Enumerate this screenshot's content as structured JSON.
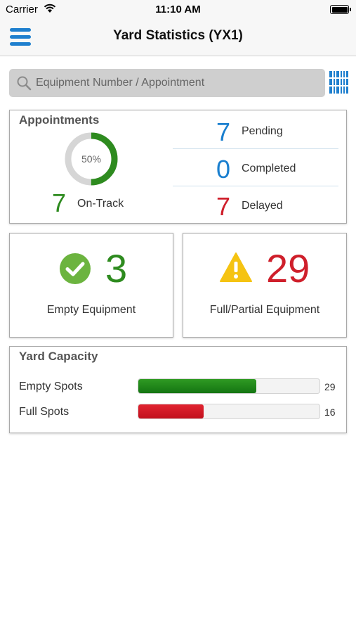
{
  "status_bar": {
    "carrier": "Carrier",
    "time": "11:10 AM",
    "icons": [
      "wifi-icon",
      "battery-icon"
    ]
  },
  "header": {
    "title": "Yard Statistics (YX1)",
    "menu_icon": "hamburger-menu-icon"
  },
  "search": {
    "placeholder": "Equipment Number / Appointment",
    "value": "",
    "icon": "search-icon",
    "scan_icon": "barcode-icon"
  },
  "appointments": {
    "title": "Appointments",
    "donut_percent_label": "50%",
    "donut_fraction": 0.5,
    "on_track": {
      "count": "7",
      "label": "On-Track"
    },
    "stats": [
      {
        "count": "7",
        "label": "Pending"
      },
      {
        "count": "0",
        "label": "Completed"
      },
      {
        "count": "7",
        "label": "Delayed"
      }
    ]
  },
  "equipment": {
    "empty": {
      "count": "3",
      "label": "Empty Equipment",
      "icon": "checkmark-circle-icon"
    },
    "full": {
      "count": "29",
      "label": "Full/Partial Equipment",
      "icon": "warning-triangle-icon"
    }
  },
  "capacity": {
    "title": "Yard Capacity",
    "rows": [
      {
        "label": "Empty Spots",
        "value": "29",
        "fraction": 0.65
      },
      {
        "label": "Full Spots",
        "value": "16",
        "fraction": 0.36
      }
    ]
  },
  "colors": {
    "accent_blue": "#1a7fcf",
    "green": "#2e8b1f",
    "red": "#cf1f2b",
    "warning_yellow": "#f5c312"
  }
}
